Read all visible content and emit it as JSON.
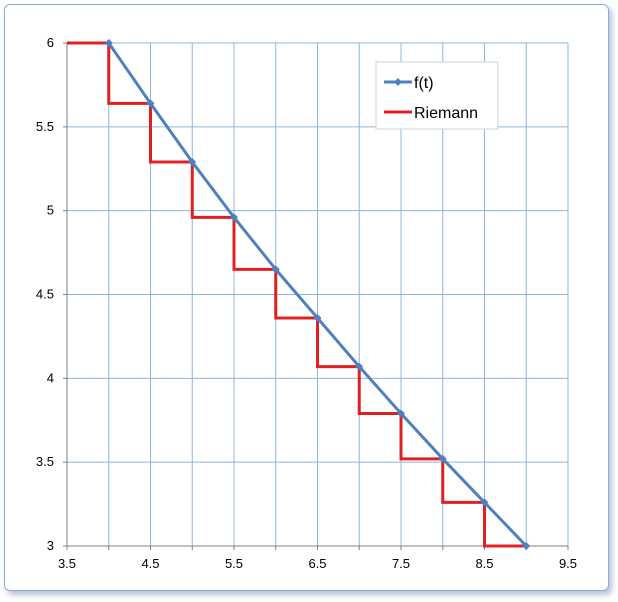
{
  "chart_data": {
    "type": "line",
    "title": "",
    "xlabel": "",
    "ylabel": "",
    "xlim": [
      3.5,
      9.5
    ],
    "ylim": [
      3,
      6
    ],
    "x_ticks": [
      3.5,
      4.5,
      5.5,
      6.5,
      7.5,
      8.5,
      9.5
    ],
    "y_ticks": [
      3,
      3.5,
      4,
      4.5,
      5,
      5.5,
      6
    ],
    "x_tick_labels": [
      "3.5",
      "4.5",
      "5.5",
      "6.5",
      "7.5",
      "8.5",
      "9.5"
    ],
    "y_tick_labels": [
      "3",
      "3.5",
      "4",
      "4.5",
      "5",
      "5.5",
      "6"
    ],
    "grid": {
      "x_step": 0.5,
      "y_step": 0.5,
      "on": true
    },
    "legend_position": "top-right",
    "series": [
      {
        "name": "f(t)",
        "kind": "line-markers",
        "color": "#4f81bd",
        "x": [
          4,
          4.5,
          5,
          5.5,
          6,
          6.5,
          7,
          7.5,
          8,
          8.5,
          9
        ],
        "y": [
          6.0,
          5.64,
          5.29,
          4.96,
          4.65,
          4.36,
          4.07,
          3.79,
          3.52,
          3.26,
          3.0
        ]
      },
      {
        "name": "Riemann",
        "kind": "step",
        "color": "#e02020",
        "x": [
          3.5,
          4,
          4,
          4.5,
          4.5,
          5,
          5,
          5.5,
          5.5,
          6,
          6,
          6.5,
          6.5,
          7,
          7,
          7.5,
          7.5,
          8,
          8,
          8.5,
          8.5,
          9
        ],
        "y": [
          6.0,
          6.0,
          5.64,
          5.64,
          5.29,
          5.29,
          4.96,
          4.96,
          4.65,
          4.65,
          4.36,
          4.36,
          4.07,
          4.07,
          3.79,
          3.79,
          3.52,
          3.52,
          3.26,
          3.26,
          3.0,
          3.0
        ]
      }
    ]
  }
}
